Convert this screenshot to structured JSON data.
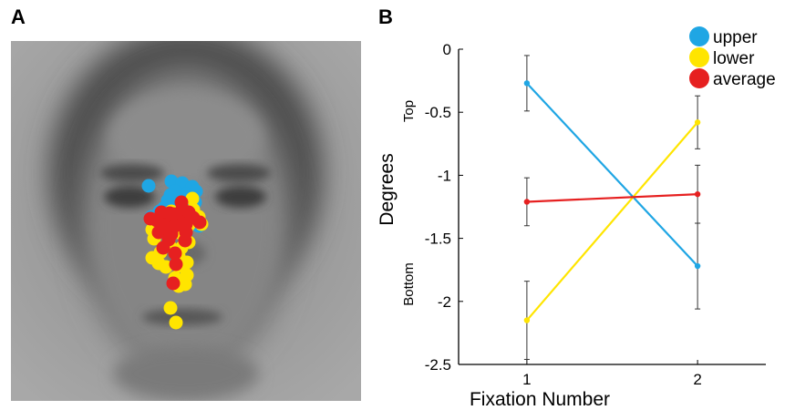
{
  "panels": {
    "a_label": "A",
    "b_label": "B"
  },
  "face_fixations": {
    "colors": {
      "upper": "#1fa6e4",
      "lower": "#ffe500",
      "average": "#e62020"
    },
    "note_points_upper": 18,
    "note_points_lower": 30,
    "note_points_average": 24
  },
  "chart_data": {
    "type": "line",
    "xlabel": "Fixation Number",
    "ylabel": "Degrees",
    "side_labels": {
      "top": "Top",
      "bottom": "Bottom"
    },
    "categories": [
      "1",
      "2"
    ],
    "x": [
      1,
      2
    ],
    "xlim": [
      0.6,
      2.4
    ],
    "ylim": [
      -2.5,
      0
    ],
    "yticks": [
      0,
      -0.5,
      -1,
      -1.5,
      -2,
      -2.5
    ],
    "ytick_labels": [
      "0",
      "-0.5",
      "-1",
      "-1.5",
      "-2",
      "-2.5"
    ],
    "series": [
      {
        "name": "upper",
        "color": "#1fa6e4",
        "values": [
          -0.27,
          -1.72
        ],
        "errors": [
          0.22,
          0.34
        ]
      },
      {
        "name": "lower",
        "color": "#ffe500",
        "values": [
          -2.15,
          -0.58
        ],
        "errors": [
          0.31,
          0.21
        ]
      },
      {
        "name": "average",
        "color": "#e62020",
        "values": [
          -1.21,
          -1.15
        ],
        "errors": [
          0.19,
          0.23
        ]
      }
    ],
    "legend": [
      "upper",
      "lower",
      "average"
    ],
    "legend_position": "top-right",
    "grid": false
  }
}
